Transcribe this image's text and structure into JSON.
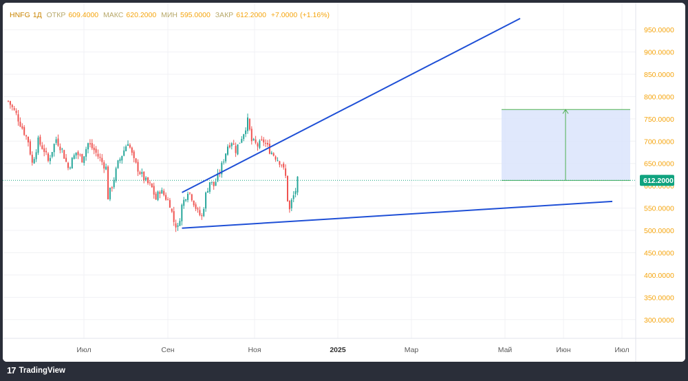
{
  "header": {
    "symbol": "HNFG",
    "interval": "1Д",
    "open_label": "ОТКР",
    "open": "609.4000",
    "high_label": "МАКС",
    "high": "620.2000",
    "low_label": "МИН",
    "low": "595.0000",
    "close_label": "ЗАКР",
    "close": "612.2000",
    "change": "+7.0000",
    "change_pct": "(+1.16%)"
  },
  "footer": {
    "brand": "TradingView"
  },
  "colors": {
    "up": "#26a69a",
    "down": "#ef5350",
    "trendline": "#1e4fd6",
    "target_box_fill": "#dbe4fb",
    "target_box_stroke": "#4caf50",
    "axis_text": "#f5a40c",
    "price_tag": "#10a37f"
  },
  "chart_data": {
    "type": "candlestick",
    "y_ticks": [
      "300.0000",
      "350.0000",
      "400.0000",
      "450.0000",
      "500.0000",
      "550.0000",
      "600.0000",
      "650.0000",
      "700.0000",
      "750.0000",
      "800.0000",
      "850.0000",
      "900.0000",
      "950.0000"
    ],
    "x_ticks": [
      {
        "label": "Июл",
        "bold": false
      },
      {
        "label": "Сен",
        "bold": false
      },
      {
        "label": "Ноя",
        "bold": false
      },
      {
        "label": "2025",
        "bold": true
      },
      {
        "label": "Мар",
        "bold": false
      },
      {
        "label": "Май",
        "bold": false
      },
      {
        "label": "Июн",
        "bold": false
      },
      {
        "label": "Июл",
        "bold": false
      }
    ],
    "current_price": "612.2000",
    "ylim": [
      258,
      998
    ],
    "price_path": [
      [
        0,
        790
      ],
      [
        4,
        760
      ],
      [
        8,
        720
      ],
      [
        10,
        700
      ],
      [
        12,
        650
      ],
      [
        15,
        700
      ],
      [
        18,
        680
      ],
      [
        20,
        655
      ],
      [
        24,
        705
      ],
      [
        27,
        680
      ],
      [
        30,
        640
      ],
      [
        34,
        675
      ],
      [
        37,
        660
      ],
      [
        40,
        695
      ],
      [
        43,
        680
      ],
      [
        46,
        660
      ],
      [
        49,
        640
      ],
      [
        50,
        575
      ],
      [
        52,
        600
      ],
      [
        55,
        650
      ],
      [
        58,
        680
      ],
      [
        60,
        700
      ],
      [
        63,
        655
      ],
      [
        66,
        630
      ],
      [
        69,
        610
      ],
      [
        72,
        595
      ],
      [
        74,
        570
      ],
      [
        76,
        590
      ],
      [
        78,
        580
      ],
      [
        81,
        560
      ],
      [
        83,
        520
      ],
      [
        85,
        505
      ],
      [
        87,
        555
      ],
      [
        90,
        590
      ],
      [
        92,
        575
      ],
      [
        95,
        540
      ],
      [
        97,
        530
      ],
      [
        99,
        580
      ],
      [
        101,
        610
      ],
      [
        103,
        600
      ],
      [
        106,
        630
      ],
      [
        108,
        660
      ],
      [
        110,
        690
      ],
      [
        112,
        700
      ],
      [
        114,
        680
      ],
      [
        116,
        700
      ],
      [
        118,
        720
      ],
      [
        120,
        745
      ],
      [
        122,
        700
      ],
      [
        125,
        690
      ],
      [
        128,
        700
      ],
      [
        131,
        680
      ],
      [
        134,
        665
      ],
      [
        137,
        650
      ],
      [
        139,
        620
      ],
      [
        140,
        570
      ],
      [
        141,
        545
      ],
      [
        142,
        565
      ],
      [
        144,
        590
      ],
      [
        145,
        612
      ]
    ],
    "annotations": {
      "upper_trendline": {
        "start_idx": 85,
        "start_price": 585,
        "end_idx": 180,
        "end_price": 975
      },
      "lower_trendline": {
        "start_idx": 85,
        "start_price": 505,
        "end_idx": 192,
        "end_price": 565
      },
      "target_box": {
        "from_idx": 155,
        "to_idx": 193,
        "low_price": 612,
        "high_price": 771
      }
    }
  }
}
